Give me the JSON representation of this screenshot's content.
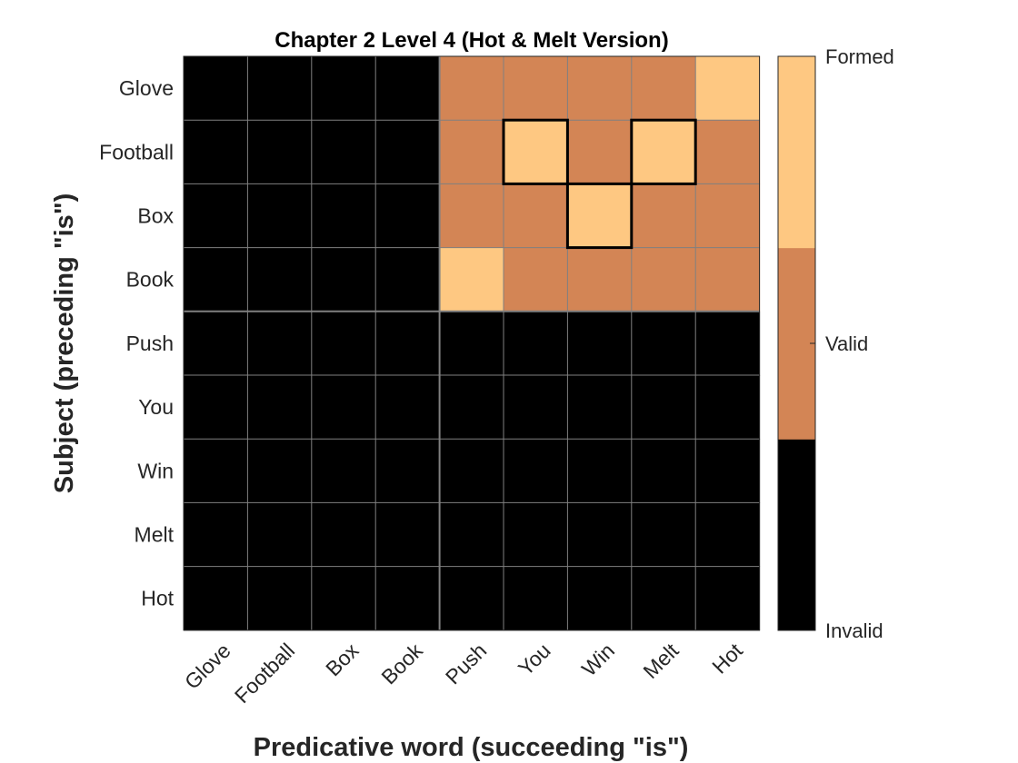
{
  "chart_data": {
    "type": "heatmap",
    "title": "Chapter 2 Level 4 (Hot & Melt Version)",
    "xlabel": "Predicative word (succeeding \"is\")",
    "ylabel": "Subject (preceding \"is\")",
    "x_categories": [
      "Glove",
      "Football",
      "Box",
      "Book",
      "Push",
      "You",
      "Win",
      "Melt",
      "Hot"
    ],
    "y_categories": [
      "Glove",
      "Football",
      "Box",
      "Book",
      "Push",
      "You",
      "Win",
      "Melt",
      "Hot"
    ],
    "values": [
      [
        0,
        0,
        0,
        0,
        1,
        1,
        1,
        1,
        2
      ],
      [
        0,
        0,
        0,
        0,
        1,
        2,
        1,
        2,
        1
      ],
      [
        0,
        0,
        0,
        0,
        1,
        1,
        2,
        1,
        1
      ],
      [
        0,
        0,
        0,
        0,
        2,
        1,
        1,
        1,
        1
      ],
      [
        0,
        0,
        0,
        0,
        0,
        0,
        0,
        0,
        0
      ],
      [
        0,
        0,
        0,
        0,
        0,
        0,
        0,
        0,
        0
      ],
      [
        0,
        0,
        0,
        0,
        0,
        0,
        0,
        0,
        0
      ],
      [
        0,
        0,
        0,
        0,
        0,
        0,
        0,
        0,
        0
      ],
      [
        0,
        0,
        0,
        0,
        0,
        0,
        0,
        0,
        0
      ]
    ],
    "highlighted_cells": [
      {
        "subject": "Football",
        "predicate": "You"
      },
      {
        "subject": "Football",
        "predicate": "Melt"
      },
      {
        "subject": "Box",
        "predicate": "Win"
      }
    ],
    "colorbar": {
      "labels": [
        "Invalid",
        "Valid",
        "Formed"
      ],
      "levels": [
        0,
        1,
        2
      ],
      "colors": [
        "#000000",
        "#d38555",
        "#fec882"
      ]
    },
    "grid": true
  }
}
